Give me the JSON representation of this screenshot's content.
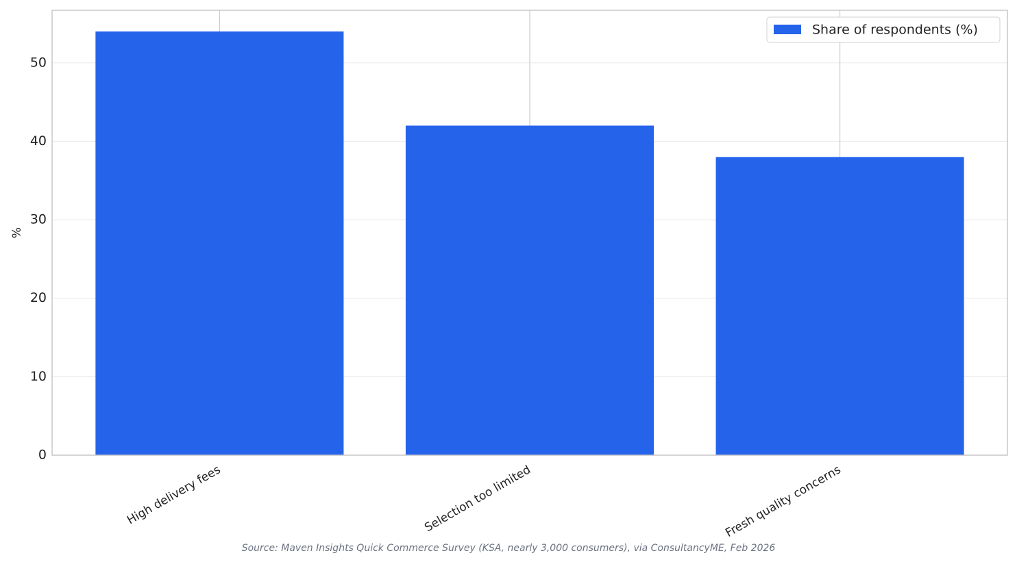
{
  "chart_data": {
    "type": "bar",
    "categories": [
      "High delivery fees",
      "Selection too limited",
      "Fresh quality concerns"
    ],
    "series": [
      {
        "name": "Share of respondents (%)",
        "color": "#2563eb",
        "values": [
          54,
          42,
          38
        ]
      }
    ],
    "y_label": "%",
    "ylim": [
      0,
      56.7
    ],
    "yticks": [
      0,
      10,
      20,
      30,
      40,
      50
    ],
    "grid": true,
    "legend": "upper right",
    "source": "Source: Maven Insights Quick Commerce Survey (KSA, nearly 3,000 consumers), via ConsultancyME, Feb 2026"
  }
}
